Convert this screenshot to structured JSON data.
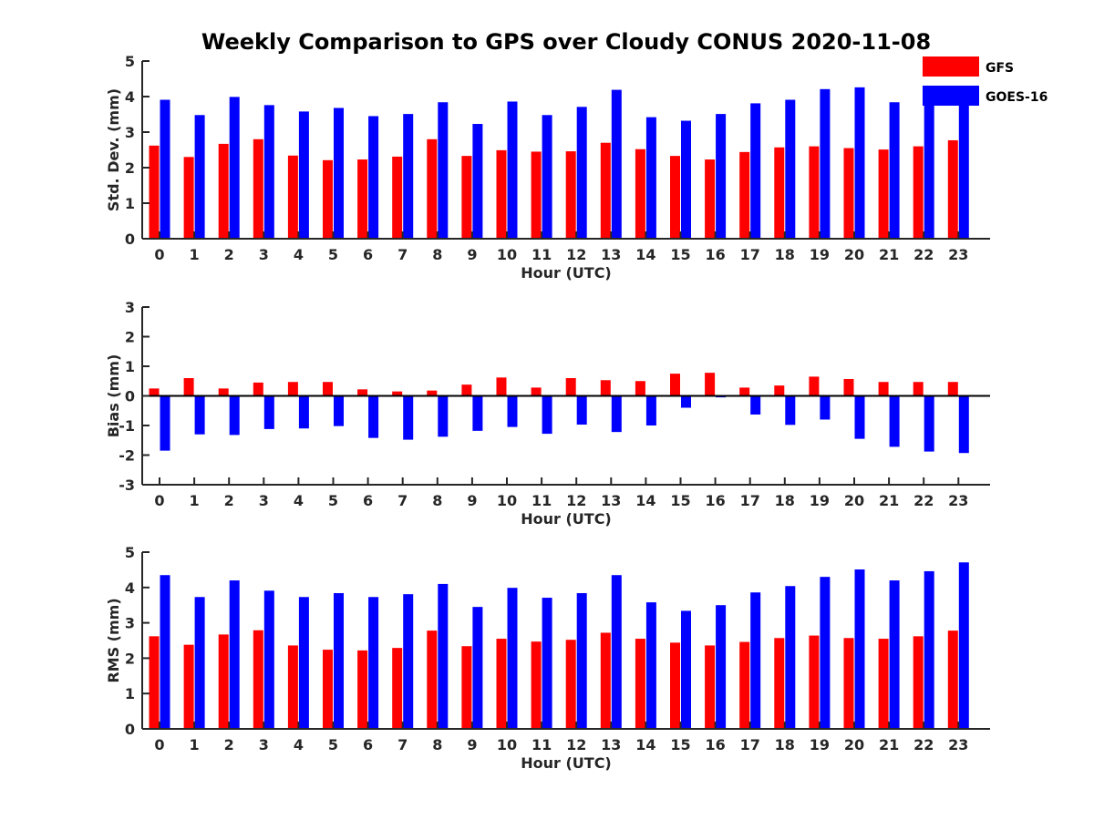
{
  "title": "Weekly Comparison to GPS over Cloudy CONUS 2020-11-08",
  "colors": {
    "GFS": "#ff0000",
    "GOES-16": "#0000ff"
  },
  "legend": {
    "placement": "top-right",
    "entries": [
      "GFS",
      "GOES-16"
    ]
  },
  "chart_data": [
    {
      "type": "bar",
      "categories": [
        "0",
        "1",
        "2",
        "3",
        "4",
        "5",
        "6",
        "7",
        "8",
        "9",
        "10",
        "11",
        "12",
        "13",
        "14",
        "15",
        "16",
        "17",
        "18",
        "19",
        "20",
        "21",
        "22",
        "23"
      ],
      "xlabel": "Hour (UTC)",
      "ylabel": "Std. Dev. (mm)",
      "ylim": [
        0,
        5
      ],
      "yticks": [
        "0",
        "1",
        "2",
        "3",
        "4",
        "5"
      ],
      "series": [
        {
          "name": "GFS",
          "values": [
            2.62,
            2.3,
            2.67,
            2.8,
            2.34,
            2.21,
            2.23,
            2.31,
            2.8,
            2.33,
            2.49,
            2.45,
            2.46,
            2.7,
            2.52,
            2.33,
            2.23,
            2.44,
            2.57,
            2.6,
            2.55,
            2.51,
            2.6,
            2.77
          ]
        },
        {
          "name": "GOES-16",
          "values": [
            3.91,
            3.48,
            3.99,
            3.76,
            3.58,
            3.68,
            3.45,
            3.51,
            3.84,
            3.23,
            3.86,
            3.48,
            3.71,
            4.19,
            3.42,
            3.32,
            3.51,
            3.81,
            3.91,
            4.21,
            4.26,
            3.84,
            4.06,
            3.92
          ]
        }
      ]
    },
    {
      "type": "bar",
      "categories": [
        "0",
        "1",
        "2",
        "3",
        "4",
        "5",
        "6",
        "7",
        "8",
        "9",
        "10",
        "11",
        "12",
        "13",
        "14",
        "15",
        "16",
        "17",
        "18",
        "19",
        "20",
        "21",
        "22",
        "23"
      ],
      "xlabel": "Hour (UTC)",
      "ylabel": "Bias (mm)",
      "ylim": [
        -3,
        3
      ],
      "yticks": [
        "-3",
        "-2",
        "-1",
        "0",
        "1",
        "2",
        "3"
      ],
      "series": [
        {
          "name": "GFS",
          "values": [
            0.25,
            0.6,
            0.25,
            0.45,
            0.47,
            0.47,
            0.22,
            0.15,
            0.18,
            0.38,
            0.62,
            0.28,
            0.6,
            0.53,
            0.5,
            0.75,
            0.78,
            0.28,
            0.35,
            0.65,
            0.57,
            0.47,
            0.47,
            0.47
          ]
        },
        {
          "name": "GOES-16",
          "values": [
            -1.85,
            -1.3,
            -1.32,
            -1.12,
            -1.1,
            -1.02,
            -1.42,
            -1.48,
            -1.38,
            -1.18,
            -1.05,
            -1.28,
            -0.97,
            -1.22,
            -1.0,
            -0.4,
            -0.05,
            -0.63,
            -0.98,
            -0.8,
            -1.45,
            -1.72,
            -1.88,
            -1.93
          ]
        }
      ]
    },
    {
      "type": "bar",
      "categories": [
        "0",
        "1",
        "2",
        "3",
        "4",
        "5",
        "6",
        "7",
        "8",
        "9",
        "10",
        "11",
        "12",
        "13",
        "14",
        "15",
        "16",
        "17",
        "18",
        "19",
        "20",
        "21",
        "22",
        "23"
      ],
      "xlabel": "Hour (UTC)",
      "ylabel": "RMS (mm)",
      "ylim": [
        0,
        5
      ],
      "yticks": [
        "0",
        "1",
        "2",
        "3",
        "4",
        "5"
      ],
      "series": [
        {
          "name": "GFS",
          "values": [
            2.62,
            2.38,
            2.67,
            2.79,
            2.36,
            2.24,
            2.22,
            2.29,
            2.78,
            2.34,
            2.55,
            2.47,
            2.52,
            2.72,
            2.55,
            2.44,
            2.36,
            2.46,
            2.57,
            2.64,
            2.57,
            2.55,
            2.62,
            2.78
          ]
        },
        {
          "name": "GOES-16",
          "values": [
            4.35,
            3.73,
            4.2,
            3.91,
            3.73,
            3.84,
            3.73,
            3.81,
            4.1,
            3.45,
            3.99,
            3.71,
            3.84,
            4.35,
            3.58,
            3.34,
            3.5,
            3.86,
            4.04,
            4.3,
            4.51,
            4.2,
            4.46,
            4.71
          ]
        }
      ]
    }
  ]
}
